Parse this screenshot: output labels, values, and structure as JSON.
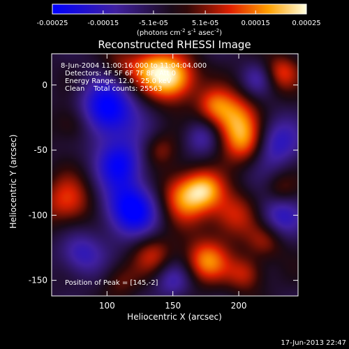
{
  "chart_data": {
    "type": "heatmap",
    "title": "Reconstructed RHESSI Image",
    "xlabel": "Heliocentric X (arcsec)",
    "ylabel": "Heliocentric Y (arcsec)",
    "xlim": [
      58,
      245
    ],
    "ylim": [
      -162,
      24
    ],
    "x_ticks": [
      100,
      150,
      200
    ],
    "y_ticks": [
      0,
      -50,
      -100,
      -150
    ],
    "colorbar": {
      "range": [
        -0.00025,
        0.00025
      ],
      "tick_values": [
        -0.00025,
        -0.00015,
        -5.1e-05,
        5.1e-05,
        0.00015,
        0.00025
      ],
      "tick_labels": [
        "-0.00025",
        "-0.00015",
        "-5.1e-05",
        "5.1e-05",
        "0.00015",
        "0.00025"
      ],
      "unit_label": "(photons cm",
      "unit_label_sup1": "-2",
      "unit_label_mid": " s",
      "unit_label_sup2": "-1",
      "unit_label_mid2": " asec",
      "unit_label_sup3": "-2",
      "unit_label_end": ")"
    },
    "info_lines": [
      "8-Jun-2004 11:00:16.000 to 11:04:04.000",
      "Detectors: 4F 5F 6F 7F 8F, Att 0",
      "Energy Range: 12.0 - 25.0 keV",
      "Clean    Total counts: 25563"
    ],
    "peak_label": "Position of Peak = [145,-2]",
    "peak": [
      145,
      -2
    ],
    "blobs": [
      {
        "x": 150,
        "y": 5,
        "v": 1.0,
        "s": 13
      },
      {
        "x": 132,
        "y": 13,
        "v": 0.6,
        "s": 12
      },
      {
        "x": 110,
        "y": 15,
        "v": 0.3,
        "s": 10
      },
      {
        "x": 195,
        "y": -25,
        "v": 0.8,
        "s": 14
      },
      {
        "x": 205,
        "y": -45,
        "v": 0.7,
        "s": 12
      },
      {
        "x": 232,
        "y": 10,
        "v": 0.55,
        "s": 10
      },
      {
        "x": 160,
        "y": -85,
        "v": 0.85,
        "s": 14
      },
      {
        "x": 175,
        "y": -80,
        "v": 0.5,
        "s": 10
      },
      {
        "x": 195,
        "y": -100,
        "v": 0.55,
        "s": 13
      },
      {
        "x": 175,
        "y": -135,
        "v": 0.75,
        "s": 12
      },
      {
        "x": 205,
        "y": -145,
        "v": 0.5,
        "s": 10
      },
      {
        "x": 220,
        "y": -120,
        "v": 0.4,
        "s": 10
      },
      {
        "x": 70,
        "y": -90,
        "v": 0.6,
        "s": 14
      },
      {
        "x": 75,
        "y": -30,
        "v": 0.4,
        "s": 11
      },
      {
        "x": 135,
        "y": -130,
        "v": 0.45,
        "s": 11
      },
      {
        "x": 140,
        "y": -50,
        "v": 0.35,
        "s": 9
      },
      {
        "x": 232,
        "y": -80,
        "v": 0.3,
        "s": 9
      },
      {
        "x": 110,
        "y": -150,
        "v": 0.3,
        "s": 10
      },
      {
        "x": 180,
        "y": -15,
        "v": 0.35,
        "s": 9
      },
      {
        "x": 100,
        "y": -20,
        "v": -0.9,
        "s": 16
      },
      {
        "x": 118,
        "y": -95,
        "v": -0.9,
        "s": 15
      },
      {
        "x": 110,
        "y": -60,
        "v": -0.7,
        "s": 13
      },
      {
        "x": 225,
        "y": -45,
        "v": -0.6,
        "s": 14
      },
      {
        "x": 230,
        "y": -100,
        "v": -0.5,
        "s": 12
      },
      {
        "x": 150,
        "y": -150,
        "v": -0.4,
        "s": 10
      },
      {
        "x": 80,
        "y": -130,
        "v": -0.5,
        "s": 12
      },
      {
        "x": 172,
        "y": -40,
        "v": -0.45,
        "s": 10
      },
      {
        "x": 215,
        "y": 5,
        "v": -0.35,
        "s": 9
      }
    ]
  },
  "footer": {
    "timestamp": "17-Jun-2013 22:47"
  }
}
